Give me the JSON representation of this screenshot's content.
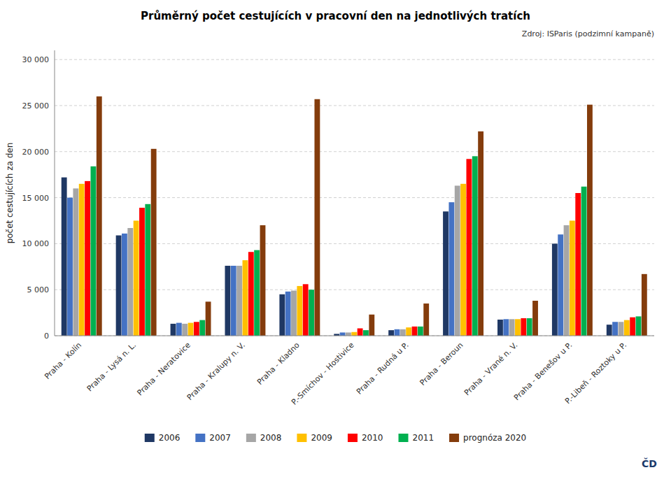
{
  "chart_data": {
    "type": "bar",
    "title": "Průměrný počet cestujících v pracovní den na jednotlivých tratích",
    "annotations": [
      "Zdroj: ISParis (podzimní kampaně)",
      "ČD"
    ],
    "ylabel": "počet cestujících za den",
    "categories": [
      "Praha - Kolín",
      "Praha - Lysá n. L.",
      "Praha - Neratovice",
      "Praha - Kralupy n. V.",
      "Praha - Kladno",
      "P.-Smíchov - Hostivice",
      "Praha - Rudná u P.",
      "Praha - Beroun",
      "Praha - Vrané n. V.",
      "Praha - Benešov u P.",
      "P.-Libeň - Roztoky u P."
    ],
    "series": [
      {
        "name": "2006",
        "color": "#1F3864",
        "values": [
          17200,
          10900,
          1300,
          7600,
          4500,
          200,
          600,
          13500,
          1750,
          10000,
          1200
        ]
      },
      {
        "name": "2007",
        "color": "#4472C4",
        "values": [
          15000,
          11100,
          1400,
          7600,
          4800,
          350,
          700,
          14500,
          1800,
          11000,
          1500
        ]
      },
      {
        "name": "2008",
        "color": "#A6A6A6",
        "values": [
          16000,
          11700,
          1300,
          7600,
          4900,
          350,
          700,
          16300,
          1800,
          12000,
          1500
        ]
      },
      {
        "name": "2009",
        "color": "#FFC000",
        "values": [
          16500,
          12500,
          1400,
          8200,
          5400,
          400,
          900,
          16500,
          1800,
          12500,
          1700
        ]
      },
      {
        "name": "2010",
        "color": "#FF0000",
        "values": [
          16800,
          13900,
          1500,
          9100,
          5600,
          800,
          1000,
          19200,
          1900,
          15500,
          2000
        ]
      },
      {
        "name": "2011",
        "color": "#00B050",
        "values": [
          18400,
          14300,
          1700,
          9300,
          5000,
          600,
          1000,
          19500,
          1900,
          16200,
          2100
        ]
      },
      {
        "name": "prognóza 2020",
        "color": "#843C0C",
        "values": [
          26000,
          20300,
          3700,
          12000,
          25700,
          2300,
          3500,
          22200,
          3800,
          25100,
          6700
        ]
      }
    ],
    "ylim": [
      0,
      31000
    ],
    "yticks": [
      0,
      {
        "value": 5000,
        "label": "5 000"
      },
      {
        "value": 10000,
        "label": "10 000"
      },
      {
        "value": 15000,
        "label": "15 000"
      },
      {
        "value": 20000,
        "label": "20 000"
      },
      {
        "value": 25000,
        "label": "25 000"
      },
      {
        "value": 30000,
        "label": "30 000"
      }
    ],
    "grid": true,
    "legend": "bottom"
  }
}
